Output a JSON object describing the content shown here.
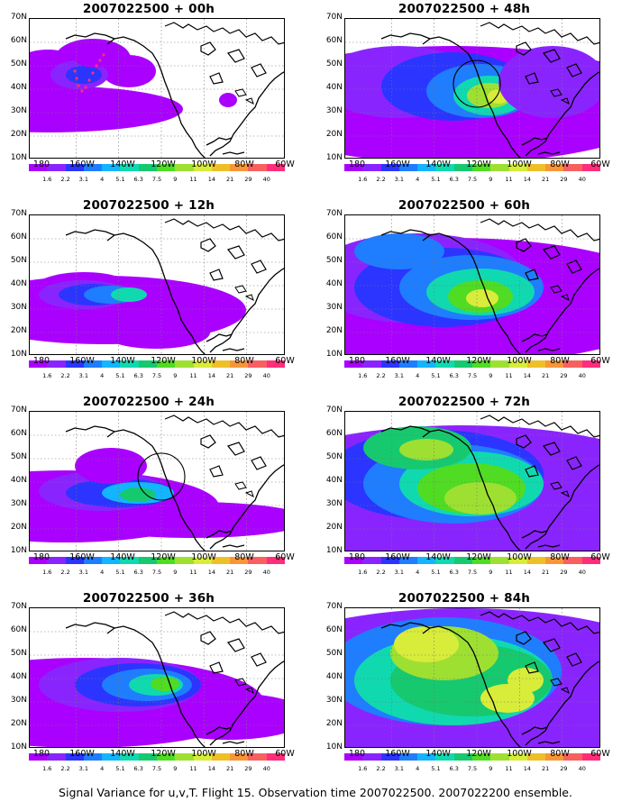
{
  "caption": "Signal Variance for u,v,T. Flight 15. Observation time 2007022500. 2007022200 ensemble.",
  "y_ticks": [
    "70N",
    "60N",
    "50N",
    "40N",
    "30N",
    "20N",
    "10N"
  ],
  "x_ticks": [
    "180",
    "160W",
    "140W",
    "120W",
    "100W",
    "80W",
    "60W"
  ],
  "colorbar": {
    "labels": [
      "1.6",
      "2.2",
      "3.1",
      "4",
      "5.1",
      "6.3",
      "7.5",
      "9",
      "11",
      "14",
      "21",
      "29",
      "40"
    ],
    "colors": [
      "#aa00ff",
      "#8a24ff",
      "#2b35ff",
      "#1f7dff",
      "#13b5ff",
      "#10d9b0",
      "#16c96f",
      "#50dc22",
      "#9ee032",
      "#d8ec3a",
      "#eec028",
      "#f79638",
      "#f86060",
      "#ff2d7a"
    ]
  },
  "panels": [
    {
      "title": "2007022500 + 00h",
      "level": 0,
      "dots": true,
      "circle": false
    },
    {
      "title": "2007022500 + 12h",
      "level": 1,
      "dots": false,
      "circle": false
    },
    {
      "title": "2007022500 + 24h",
      "level": 2,
      "dots": false,
      "circle": true
    },
    {
      "title": "2007022500 + 36h",
      "level": 3,
      "dots": false,
      "circle": false
    },
    {
      "title": "2007022500 + 48h",
      "level": 4,
      "dots": false,
      "circle": true
    },
    {
      "title": "2007022500 + 60h",
      "level": 5,
      "dots": false,
      "circle": false
    },
    {
      "title": "2007022500 + 72h",
      "level": 6,
      "dots": false,
      "circle": false
    },
    {
      "title": "2007022500 + 84h",
      "level": 7,
      "dots": false,
      "circle": false
    }
  ]
}
